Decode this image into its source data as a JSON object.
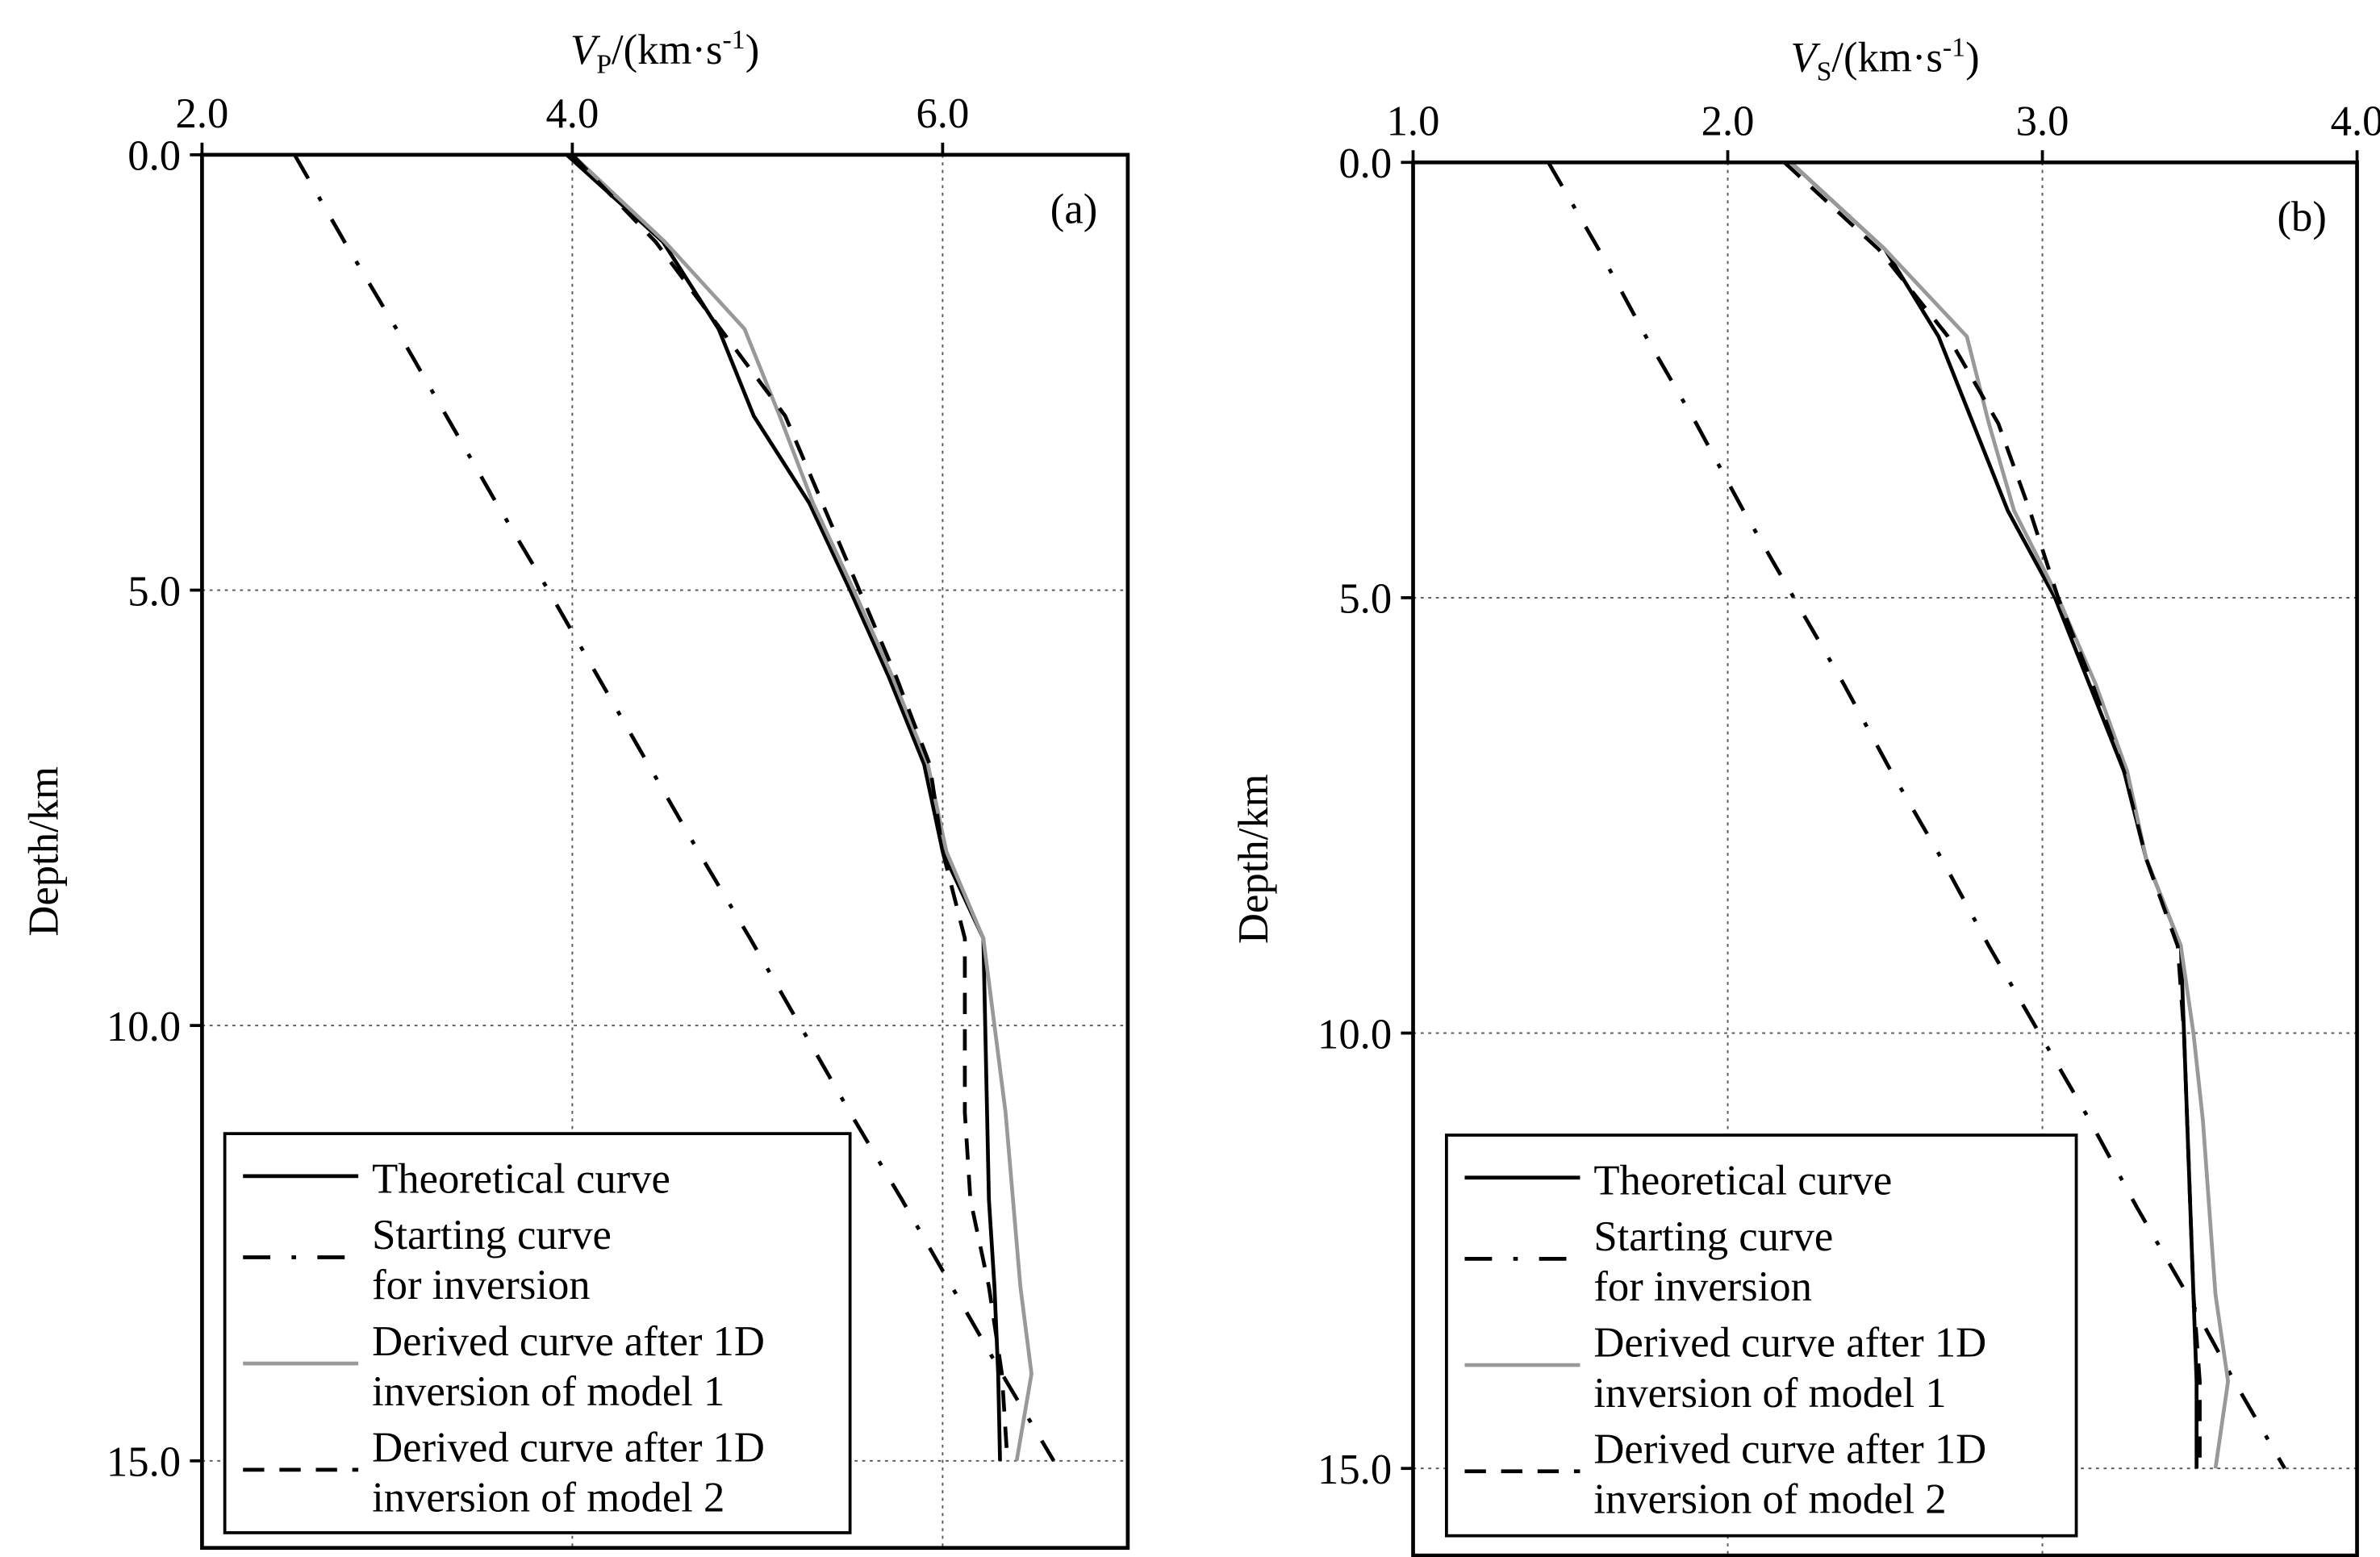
{
  "chart_data": [
    {
      "type": "line",
      "panel": "(a)",
      "xlabel": {
        "symbol": "V",
        "subscript": "P",
        "unit": "/(km·s",
        "exponent": "-1",
        "close": ")"
      },
      "ylabel": "Depth/km",
      "depth": [
        0,
        1,
        2,
        3,
        4,
        5,
        6,
        7,
        8,
        9,
        10,
        11,
        12,
        13,
        14,
        15
      ],
      "xlim": [
        2,
        7
      ],
      "ylim": [
        0,
        16
      ],
      "xticks": [
        {
          "value": 2,
          "label": "2.0"
        },
        {
          "value": 4,
          "label": "4.0"
        },
        {
          "value": 6,
          "label": "6.0"
        }
      ],
      "yticks": [
        {
          "value": 0,
          "label": "0.0"
        },
        {
          "value": 5,
          "label": "5.0"
        },
        {
          "value": 10,
          "label": "10.0"
        },
        {
          "value": 15,
          "label": "15.0"
        }
      ],
      "grid": true,
      "series": [
        {
          "name": [
            "Theoretical  curve"
          ],
          "color": "#000000",
          "style": "solid",
          "values": [
            3.97,
            4.49,
            4.79,
            4.98,
            5.28,
            5.5,
            5.71,
            5.9,
            6.0,
            6.22,
            6.23,
            6.24,
            6.25,
            6.28,
            6.3,
            6.31
          ]
        },
        {
          "name": [
            "Starting curve",
            "for inversion"
          ],
          "color": "#000000",
          "style": "dashdot",
          "values": [
            2.5,
            2.77,
            3.05,
            3.32,
            3.59,
            3.87,
            4.14,
            4.41,
            4.68,
            4.96,
            5.23,
            5.5,
            5.78,
            6.05,
            6.32,
            6.6
          ]
        },
        {
          "name": [
            "Derived curve after 1D",
            "inversion of model 1"
          ],
          "color": "#999999",
          "style": "solid",
          "values": [
            4.0,
            4.5,
            4.93,
            5.12,
            5.3,
            5.52,
            5.73,
            5.92,
            6.02,
            6.22,
            6.28,
            6.34,
            6.38,
            6.42,
            6.48,
            6.4
          ]
        },
        {
          "name": [
            "Derived curve after 1D",
            "inversion of model 2"
          ],
          "color": "#000000",
          "style": "dashed",
          "values": [
            4.0,
            4.45,
            4.8,
            5.15,
            5.35,
            5.55,
            5.75,
            5.93,
            6.0,
            6.12,
            6.12,
            6.12,
            6.15,
            6.25,
            6.32,
            6.35
          ]
        }
      ]
    },
    {
      "type": "line",
      "panel": "(b)",
      "xlabel": {
        "symbol": "V",
        "subscript": "S",
        "unit": "/(km·s",
        "exponent": "-1",
        "close": ")"
      },
      "ylabel": "Depth/km",
      "depth": [
        0,
        1,
        2,
        3,
        4,
        5,
        6,
        7,
        8,
        9,
        10,
        11,
        12,
        13,
        14,
        15
      ],
      "xlim": [
        1,
        4
      ],
      "ylim": [
        0,
        16
      ],
      "xticks": [
        {
          "value": 1,
          "label": "1.0"
        },
        {
          "value": 2,
          "label": "2.0"
        },
        {
          "value": 3,
          "label": "3.0"
        },
        {
          "value": 4,
          "label": "4.0"
        }
      ],
      "yticks": [
        {
          "value": 0,
          "label": "0.0"
        },
        {
          "value": 5,
          "label": "5.0"
        },
        {
          "value": 10,
          "label": "10.0"
        },
        {
          "value": 15,
          "label": "15.0"
        }
      ],
      "grid": true,
      "series": [
        {
          "name": [
            "Theoretical  curve"
          ],
          "color": "#000000",
          "style": "solid",
          "values": [
            2.2,
            2.5,
            2.67,
            2.78,
            2.89,
            3.04,
            3.15,
            3.26,
            3.33,
            3.44,
            3.45,
            3.46,
            3.47,
            3.48,
            3.49,
            3.49
          ]
        },
        {
          "name": [
            "Starting curve",
            "for inversion"
          ],
          "color": "#000000",
          "style": "dashdot",
          "values": [
            1.43,
            1.59,
            1.74,
            1.9,
            2.05,
            2.21,
            2.37,
            2.52,
            2.68,
            2.83,
            2.99,
            3.15,
            3.3,
            3.46,
            3.61,
            3.77
          ]
        },
        {
          "name": [
            "Derived curve after 1D",
            "inversion of model 1"
          ],
          "color": "#999999",
          "style": "solid",
          "values": [
            2.2,
            2.5,
            2.76,
            2.83,
            2.91,
            3.05,
            3.17,
            3.27,
            3.33,
            3.44,
            3.48,
            3.51,
            3.53,
            3.55,
            3.59,
            3.55
          ]
        },
        {
          "name": [
            "Derived curve after 1D",
            "inversion of model 2"
          ],
          "color": "#000000",
          "style": "dashed",
          "values": [
            2.18,
            2.48,
            2.7,
            2.86,
            2.96,
            3.05,
            3.16,
            3.26,
            3.33,
            3.43,
            3.45,
            3.46,
            3.47,
            3.48,
            3.5,
            3.5
          ]
        }
      ]
    }
  ]
}
